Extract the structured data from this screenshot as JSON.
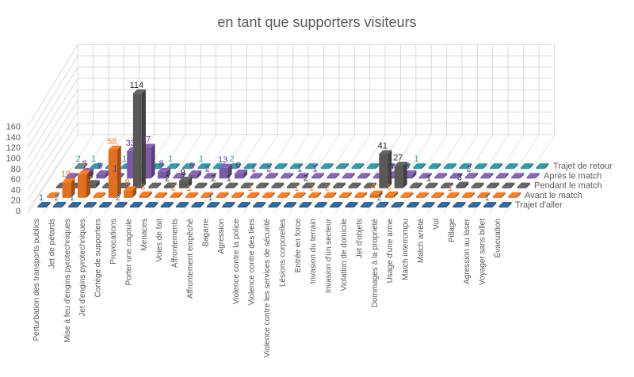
{
  "chart_data": {
    "type": "bar",
    "subtype": "3d-column",
    "title": "en tant que supporters visiteurs",
    "xlabel": "",
    "ylabel": "",
    "ylim": [
      0,
      160
    ],
    "yticks": [
      0,
      20,
      40,
      60,
      80,
      100,
      120,
      140,
      160
    ],
    "grid": true,
    "legend_position": "right (depth axis)",
    "categories": [
      "Perturbation des transports publics",
      "Jet de pétards",
      "Mise à feu d'engins pyrotechniques",
      "Jet d'engins pyrotechniques",
      "Cortège de supporters",
      "Provocations",
      "Porter une cagoule",
      "Menaces",
      "Voies de fait",
      "Affrontements",
      "Affrontement empêché",
      "Bagarre",
      "Agression",
      "Violence contre la police",
      "Violence contre des tiers",
      "Violence contre les services de sécurité",
      "Lésions corporelles",
      "Entrée en force",
      "Invasion du terrain",
      "Invasion d'un secteur",
      "Violation de domicile",
      "Jet d'objets",
      "Dommages à la propriété",
      "Usage d'une arme",
      "Match interrompu",
      "Match arrêté",
      "Vol",
      "Pillage",
      "Agression au laser",
      "Voyager sans billet",
      "Évacuation"
    ],
    "series": [
      {
        "name": "Trajet d'aller",
        "color": "#2e5f8f",
        "label_color": "#2e75b6",
        "values": [
          1,
          2,
          1,
          0,
          0,
          2,
          0,
          0,
          0,
          0,
          0,
          1,
          0,
          0,
          0,
          0,
          0,
          0,
          0,
          0,
          0,
          0,
          2,
          0,
          0,
          0,
          0,
          0,
          0,
          1,
          0
        ]
      },
      {
        "name": "Avant le match",
        "color": "#e0701f",
        "label_color": "#ed7d31",
        "values": [
          0,
          19,
          28,
          0,
          58,
          9,
          3,
          0,
          2,
          1,
          0,
          0,
          0,
          1,
          0,
          0,
          1,
          2,
          2,
          0,
          0,
          4,
          3,
          0,
          0,
          0,
          1,
          0,
          0,
          0,
          0
        ]
      },
      {
        "name": "Pendant le match",
        "color": "#595959",
        "label_color": "#262626",
        "values": [
          0,
          0,
          5,
          0,
          0,
          114,
          0,
          2,
          9,
          0,
          2,
          1,
          0,
          0,
          0,
          0,
          2,
          0,
          0,
          0,
          0,
          41,
          27,
          0,
          1,
          0,
          3,
          0,
          0,
          0,
          0
        ]
      },
      {
        "name": "Après le match",
        "color": "#7a5aa6",
        "label_color": "#7030a0",
        "values": [
          0,
          8,
          5,
          1,
          33,
          37,
          8,
          0,
          5,
          2,
          13,
          6,
          1,
          2,
          0,
          1,
          1,
          0,
          0,
          0,
          0,
          4,
          5,
          0,
          0,
          0,
          2,
          0,
          0,
          0,
          0
        ]
      },
      {
        "name": "Trajet de retour",
        "color": "#2a8a9a",
        "label_color": "#31a3b5",
        "values": [
          2,
          1,
          0,
          1,
          0,
          0,
          1,
          0,
          1,
          0,
          2,
          0,
          0,
          0,
          0,
          0,
          0,
          0,
          0,
          0,
          0,
          0,
          1,
          0,
          0,
          0,
          0,
          0,
          0,
          0,
          0
        ]
      }
    ]
  }
}
